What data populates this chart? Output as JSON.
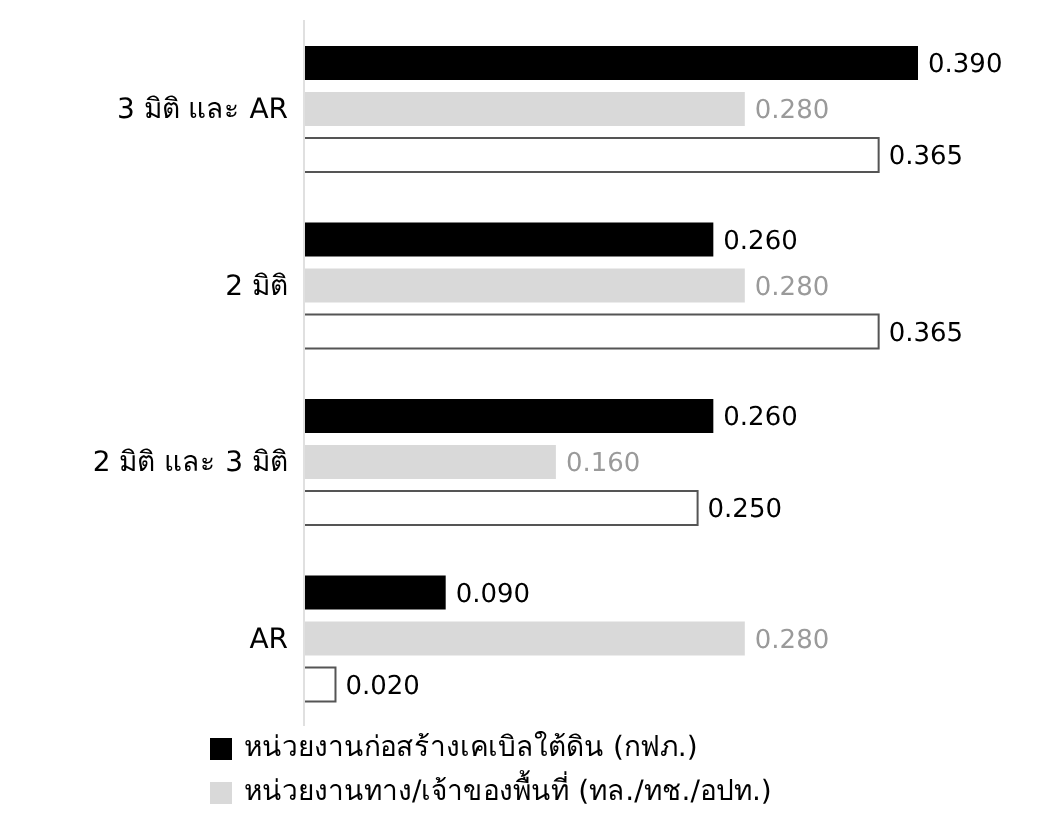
{
  "chart_data": {
    "type": "bar",
    "orientation": "horizontal",
    "categories": [
      "3 มิติ และ AR",
      "2 มิติ",
      "2 มิติ และ 3 มิติ",
      "AR"
    ],
    "series": [
      {
        "name": "หน่วยงานก่อสร้างเคเบิลใต้ดิน (กฟภ.)",
        "color": "#000000",
        "values": [
          0.39,
          0.26,
          0.26,
          0.09
        ],
        "value_labels": [
          "0.390",
          "0.260",
          "0.260",
          "0.090"
        ]
      },
      {
        "name": "หน่วยงานทาง/เจ้าของพื้นที่ (ทล./ทช./อปท.)",
        "color": "#d9d9d9",
        "values": [
          0.28,
          0.28,
          0.16,
          0.28
        ],
        "value_labels": [
          "0.280",
          "0.280",
          "0.160",
          "0.280"
        ]
      },
      {
        "color": "#ffffff",
        "values": [
          0.365,
          0.365,
          0.25,
          0.02
        ],
        "value_labels": [
          "0.365",
          "0.365",
          "0.250",
          "0.020"
        ]
      }
    ],
    "legend": "bottom",
    "grid": false
  }
}
